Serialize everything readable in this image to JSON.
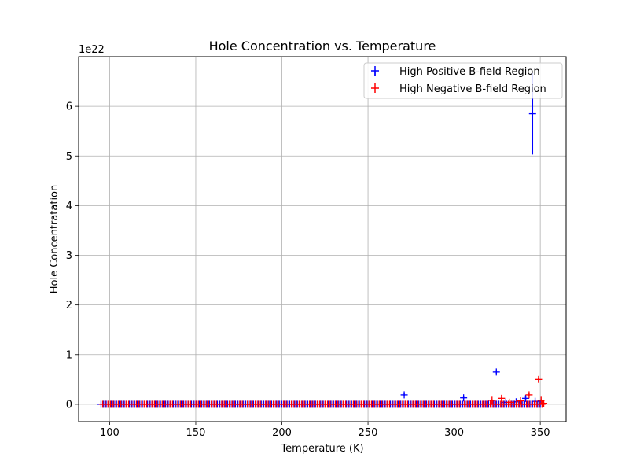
{
  "chart_data": {
    "type": "scatter",
    "title": "Hole Concentration vs. Temperature",
    "xlabel": "Temperature (K)",
    "ylabel": "Hole Concentratation",
    "y_offset_label": "1e22",
    "xlim": [
      82,
      365
    ],
    "ylim": [
      -0.35,
      7.0
    ],
    "x_ticks": [
      100,
      150,
      200,
      250,
      300,
      350
    ],
    "y_ticks": [
      0,
      1,
      2,
      3,
      4,
      5,
      6
    ],
    "grid": true,
    "legend_position": "upper right",
    "series": [
      {
        "name": "High Positive B-field Region",
        "color": "#0000ff",
        "marker": "+",
        "baseline": {
          "x_start": 95,
          "x_end": 350,
          "x_step": 1.5,
          "y": 0.0
        },
        "points": [
          {
            "x": 271,
            "y": 0.19,
            "err": 0.03
          },
          {
            "x": 305.5,
            "y": 0.13,
            "err": 0.03
          },
          {
            "x": 324.5,
            "y": 0.65,
            "err": 0.04
          },
          {
            "x": 330,
            "y": 0.04,
            "err": 0.02
          },
          {
            "x": 336,
            "y": 0.05,
            "err": 0.02
          },
          {
            "x": 341.5,
            "y": 0.12,
            "err": 0.04
          },
          {
            "x": 345.5,
            "y": 5.85,
            "err": 0.82
          },
          {
            "x": 347,
            "y": 0.06,
            "err": 0.02
          }
        ]
      },
      {
        "name": "High Negative B-field Region",
        "color": "#ff0000",
        "marker": "+",
        "baseline": {
          "x_start": 96,
          "x_end": 352,
          "x_step": 1.5,
          "y": 0.0
        },
        "points": [
          {
            "x": 322,
            "y": 0.08,
            "err": 0.02
          },
          {
            "x": 327.5,
            "y": 0.12,
            "err": 0.02
          },
          {
            "x": 332,
            "y": 0.04,
            "err": 0.02
          },
          {
            "x": 338.5,
            "y": 0.07,
            "err": 0.02
          },
          {
            "x": 343.5,
            "y": 0.19,
            "err": 0.03
          },
          {
            "x": 349,
            "y": 0.5,
            "err": 0.04
          },
          {
            "x": 350.5,
            "y": 0.08,
            "err": 0.02
          },
          {
            "x": 352,
            "y": 0.02,
            "err": 0.02
          }
        ]
      }
    ]
  }
}
